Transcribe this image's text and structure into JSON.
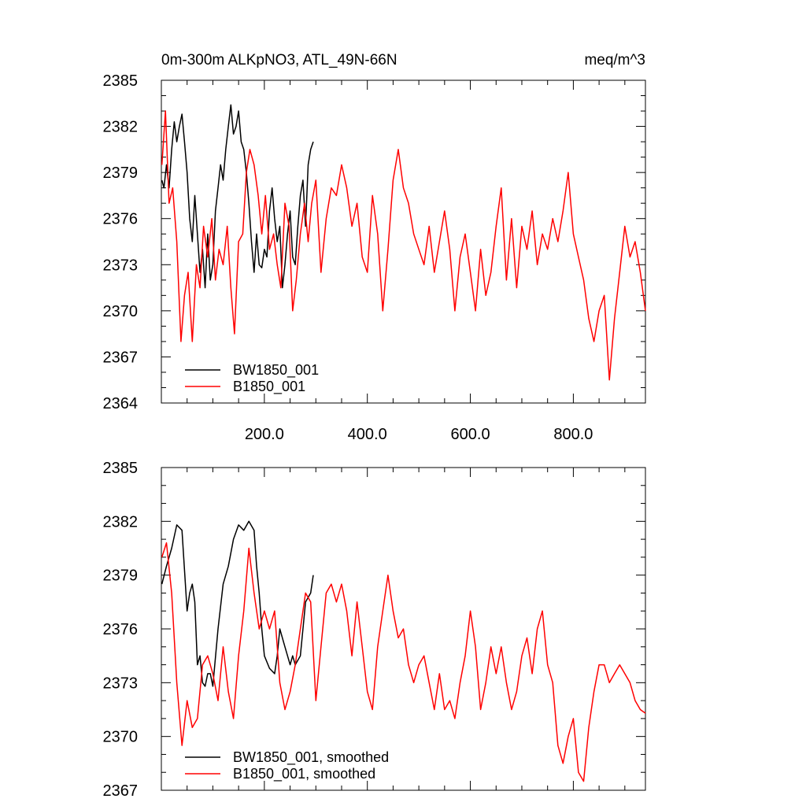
{
  "chart_data": [
    {
      "type": "line",
      "title_left": "0m-300m ALKpNO3, ATL_49N-66N",
      "title_right": "meq/m^3",
      "xlim": [
        0,
        940
      ],
      "xticks": [
        200,
        400,
        600,
        800
      ],
      "xtick_labels": [
        "200.0",
        "400.0",
        "600.0",
        "800.0"
      ],
      "ylim": [
        2364,
        2385
      ],
      "yticks": [
        2364,
        2367,
        2370,
        2373,
        2376,
        2379,
        2382,
        2385
      ],
      "ytick_labels": [
        "2364",
        "2367",
        "2370",
        "2373",
        "2376",
        "2379",
        "2382",
        "2385"
      ],
      "grid": false,
      "legend_position": "bottom-left",
      "series": [
        {
          "name": "BW1850_001",
          "color": "#000000",
          "x": [
            1,
            5,
            10,
            15,
            20,
            25,
            30,
            35,
            40,
            45,
            50,
            55,
            60,
            65,
            70,
            75,
            80,
            85,
            90,
            95,
            100,
            105,
            110,
            115,
            120,
            125,
            130,
            135,
            140,
            145,
            150,
            155,
            160,
            165,
            170,
            175,
            180,
            185,
            190,
            195,
            200,
            205,
            210,
            215,
            220,
            225,
            230,
            235,
            240,
            245,
            250,
            255,
            260,
            265,
            270,
            275,
            280,
            285,
            290,
            295
          ],
          "values": [
            2378.5,
            2378.0,
            2379.5,
            2378.0,
            2380.5,
            2382.3,
            2381.0,
            2382.0,
            2382.8,
            2381.0,
            2379.0,
            2376.0,
            2374.5,
            2377.5,
            2375.0,
            2372.5,
            2374.0,
            2371.5,
            2375.0,
            2372.0,
            2373.0,
            2376.5,
            2378.0,
            2379.5,
            2378.5,
            2380.5,
            2382.0,
            2383.4,
            2381.5,
            2382.0,
            2383.0,
            2381.0,
            2380.5,
            2379.0,
            2377.0,
            2374.5,
            2372.5,
            2375.0,
            2373.0,
            2372.8,
            2374.0,
            2373.5,
            2376.5,
            2378.0,
            2376.0,
            2374.5,
            2375.5,
            2371.5,
            2373.0,
            2375.0,
            2376.5,
            2373.5,
            2373.0,
            2375.5,
            2377.5,
            2378.5,
            2375.5,
            2379.5,
            2380.5,
            2381.0
          ]
        },
        {
          "name": "B1850_001",
          "color": "#ff0000",
          "x": [
            1,
            8,
            15,
            22,
            30,
            38,
            45,
            52,
            60,
            68,
            75,
            82,
            90,
            98,
            105,
            112,
            120,
            128,
            135,
            142,
            150,
            158,
            165,
            172,
            180,
            188,
            195,
            202,
            210,
            218,
            225,
            232,
            240,
            248,
            255,
            262,
            270,
            278,
            285,
            292,
            300,
            310,
            320,
            330,
            340,
            350,
            360,
            370,
            380,
            390,
            400,
            410,
            420,
            430,
            440,
            450,
            460,
            470,
            480,
            490,
            500,
            510,
            520,
            530,
            540,
            550,
            560,
            570,
            580,
            590,
            600,
            610,
            620,
            630,
            640,
            650,
            660,
            670,
            680,
            690,
            700,
            710,
            720,
            730,
            740,
            750,
            760,
            770,
            780,
            790,
            800,
            810,
            820,
            830,
            840,
            850,
            860,
            870,
            880,
            890,
            900,
            910,
            920,
            930,
            940
          ],
          "values": [
            2379.5,
            2383.0,
            2377.0,
            2378.0,
            2374.5,
            2368.0,
            2371.0,
            2372.5,
            2368.0,
            2373.0,
            2371.5,
            2375.5,
            2373.5,
            2376.0,
            2372.0,
            2374.0,
            2373.0,
            2375.5,
            2371.5,
            2368.5,
            2374.5,
            2375.0,
            2379.0,
            2380.5,
            2379.5,
            2377.5,
            2375.0,
            2377.5,
            2374.0,
            2375.0,
            2373.0,
            2371.5,
            2377.0,
            2375.5,
            2370.0,
            2372.0,
            2375.0,
            2377.0,
            2374.5,
            2377.0,
            2378.5,
            2372.5,
            2376.0,
            2378.0,
            2377.5,
            2379.5,
            2378.0,
            2375.5,
            2377.0,
            2373.5,
            2372.5,
            2377.5,
            2375.0,
            2370.0,
            2374.0,
            2378.5,
            2380.5,
            2378.0,
            2377.0,
            2375.0,
            2374.0,
            2373.0,
            2375.5,
            2372.5,
            2374.5,
            2376.5,
            2374.0,
            2370.0,
            2373.5,
            2375.0,
            2372.5,
            2370.0,
            2374.0,
            2371.0,
            2372.5,
            2375.5,
            2378.0,
            2372.0,
            2376.0,
            2371.5,
            2375.5,
            2374.0,
            2376.5,
            2373.0,
            2375.0,
            2374.0,
            2376.0,
            2374.5,
            2376.5,
            2379.0,
            2375.0,
            2373.5,
            2372.0,
            2369.5,
            2368.0,
            2370.0,
            2371.0,
            2365.5,
            2369.5,
            2372.5,
            2375.5,
            2373.5,
            2374.5,
            2372.5,
            2370.0
          ]
        }
      ]
    },
    {
      "type": "line",
      "title_left": "",
      "title_right": "",
      "xlim": [
        0,
        940
      ],
      "xticks": [
        200,
        400,
        600,
        800
      ],
      "xtick_labels": [
        "",
        "",
        "",
        ""
      ],
      "ylim": [
        2367,
        2385
      ],
      "yticks": [
        2367,
        2370,
        2373,
        2376,
        2379,
        2382,
        2385
      ],
      "ytick_labels": [
        "2367",
        "2370",
        "2373",
        "2376",
        "2379",
        "2382",
        "2385"
      ],
      "grid": false,
      "legend_position": "bottom-left",
      "series": [
        {
          "name": "BW1850_001, smoothed",
          "color": "#000000",
          "x": [
            1,
            10,
            20,
            30,
            40,
            50,
            55,
            60,
            65,
            70,
            75,
            80,
            85,
            90,
            95,
            100,
            110,
            120,
            130,
            140,
            150,
            160,
            170,
            180,
            185,
            190,
            195,
            200,
            210,
            220,
            225,
            230,
            240,
            250,
            255,
            260,
            270,
            280,
            290,
            295
          ],
          "values": [
            2378.5,
            2379.5,
            2380.5,
            2381.8,
            2381.5,
            2377.0,
            2378.0,
            2378.5,
            2377.5,
            2374.0,
            2374.5,
            2373.0,
            2372.8,
            2373.5,
            2373.5,
            2372.8,
            2376.0,
            2378.5,
            2379.5,
            2381.0,
            2381.8,
            2381.5,
            2382.0,
            2381.5,
            2379.5,
            2378.0,
            2376.0,
            2374.5,
            2373.8,
            2373.5,
            2374.5,
            2376.0,
            2375.0,
            2374.0,
            2374.5,
            2374.0,
            2374.5,
            2377.5,
            2378.0,
            2379.0
          ]
        },
        {
          "name": "B1850_001, smoothed",
          "color": "#ff0000",
          "x": [
            1,
            10,
            20,
            30,
            40,
            50,
            60,
            70,
            80,
            90,
            100,
            110,
            120,
            130,
            140,
            150,
            160,
            170,
            180,
            190,
            200,
            210,
            220,
            230,
            240,
            250,
            260,
            270,
            280,
            290,
            300,
            310,
            320,
            330,
            340,
            350,
            360,
            370,
            380,
            390,
            400,
            410,
            420,
            430,
            440,
            450,
            460,
            470,
            480,
            490,
            500,
            510,
            520,
            530,
            540,
            550,
            560,
            570,
            580,
            590,
            600,
            610,
            620,
            630,
            640,
            650,
            660,
            670,
            680,
            690,
            700,
            710,
            720,
            730,
            740,
            750,
            760,
            770,
            780,
            790,
            800,
            810,
            820,
            830,
            840,
            850,
            860,
            870,
            880,
            890,
            900,
            910,
            920,
            930,
            940
          ],
          "values": [
            2380.0,
            2380.8,
            2378.0,
            2373.0,
            2369.5,
            2372.0,
            2370.5,
            2371.0,
            2374.0,
            2374.5,
            2373.5,
            2372.0,
            2375.0,
            2372.5,
            2371.0,
            2374.5,
            2377.0,
            2380.5,
            2378.0,
            2376.0,
            2377.0,
            2376.0,
            2377.0,
            2373.0,
            2371.5,
            2372.5,
            2374.0,
            2376.0,
            2378.0,
            2377.5,
            2372.0,
            2375.0,
            2378.0,
            2378.5,
            2377.5,
            2378.5,
            2377.0,
            2374.5,
            2377.5,
            2375.0,
            2372.5,
            2371.5,
            2375.0,
            2377.0,
            2379.0,
            2377.0,
            2375.5,
            2376.0,
            2374.0,
            2373.0,
            2374.0,
            2374.5,
            2373.0,
            2371.5,
            2373.5,
            2371.5,
            2372.0,
            2371.0,
            2373.0,
            2374.5,
            2377.0,
            2375.0,
            2371.5,
            2373.0,
            2375.0,
            2373.5,
            2375.0,
            2373.0,
            2371.5,
            2372.5,
            2374.5,
            2375.5,
            2373.5,
            2376.0,
            2377.0,
            2374.0,
            2373.0,
            2369.5,
            2368.5,
            2370.0,
            2371.0,
            2368.0,
            2367.5,
            2370.5,
            2372.5,
            2374.0,
            2374.0,
            2373.0,
            2373.5,
            2374.0,
            2373.5,
            2373.0,
            2372.0,
            2371.5,
            2371.3
          ]
        }
      ]
    }
  ]
}
